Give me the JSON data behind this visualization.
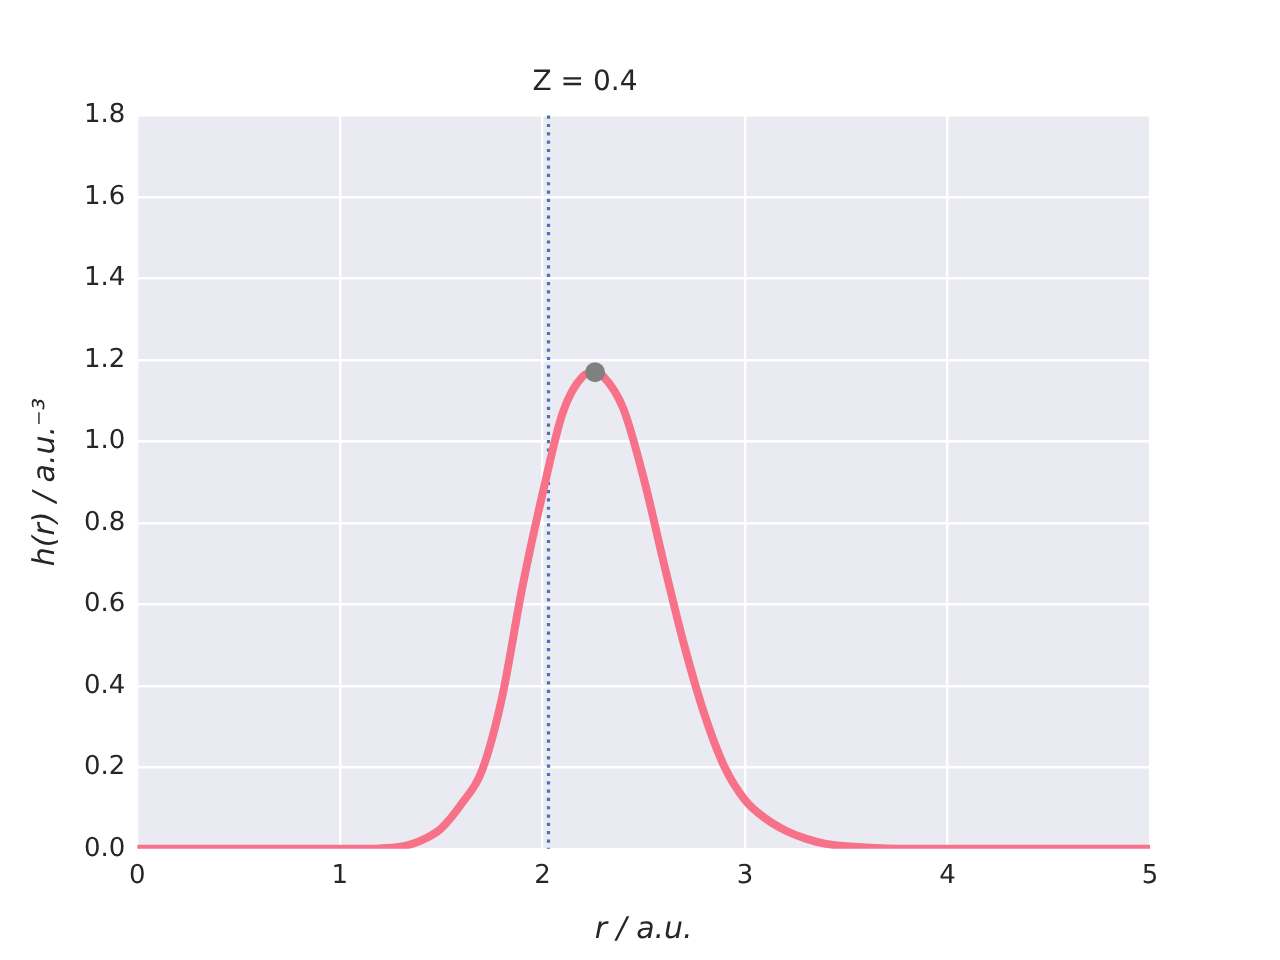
{
  "chart_data": {
    "type": "line",
    "title": "Z = 0.4",
    "xlabel": "r / a.u.",
    "ylabel": "h(r) / a.u.⁻³",
    "xlim": [
      0,
      5
    ],
    "xticks": [
      0,
      1,
      2,
      3,
      4,
      5
    ],
    "ylim": [
      0,
      1.8
    ],
    "yticks": [
      {
        "value": 0,
        "label": "0.0"
      },
      {
        "value": 0.2,
        "label": "0.2"
      },
      {
        "value": 0.4,
        "label": "0.4"
      },
      {
        "value": 0.6,
        "label": "0.6"
      },
      {
        "value": 0.8,
        "label": "0.8"
      },
      {
        "value": 1.0,
        "label": "1.0"
      },
      {
        "value": 1.2,
        "label": "1.2"
      },
      {
        "value": 1.4,
        "label": "1.4"
      },
      {
        "value": 1.6,
        "label": "1.6"
      },
      {
        "value": 1.8,
        "label": "1.8"
      }
    ],
    "grid": true,
    "marker": "none",
    "line_style": "solid",
    "series": [
      {
        "color": "#f77189",
        "x": [
          0,
          1.0,
          1.2,
          1.3,
          1.4,
          1.5,
          1.6,
          1.7,
          1.8,
          1.9,
          2.0,
          2.1,
          2.2,
          2.26,
          2.3,
          2.4,
          2.5,
          2.6,
          2.7,
          2.8,
          2.9,
          3.0,
          3.1,
          3.2,
          3.3,
          3.4,
          3.5,
          3.7,
          4.0,
          5.0
        ],
        "values": [
          0,
          0,
          0.001,
          0.005,
          0.02,
          0.05,
          0.11,
          0.19,
          0.37,
          0.64,
          0.87,
          1.07,
          1.16,
          1.17,
          1.16,
          1.08,
          0.91,
          0.7,
          0.5,
          0.33,
          0.2,
          0.12,
          0.075,
          0.045,
          0.025,
          0.012,
          0.006,
          0.001,
          0,
          0
        ]
      },
      {
        "type": "scatter",
        "color": "#808080",
        "marker": "circle",
        "x": [
          2.26
        ],
        "values": [
          1.17
        ]
      }
    ],
    "ref_lines": [
      {
        "axis": "x",
        "value": 2.03,
        "color": "#4c72b0",
        "line_style": "dotted"
      }
    ]
  }
}
